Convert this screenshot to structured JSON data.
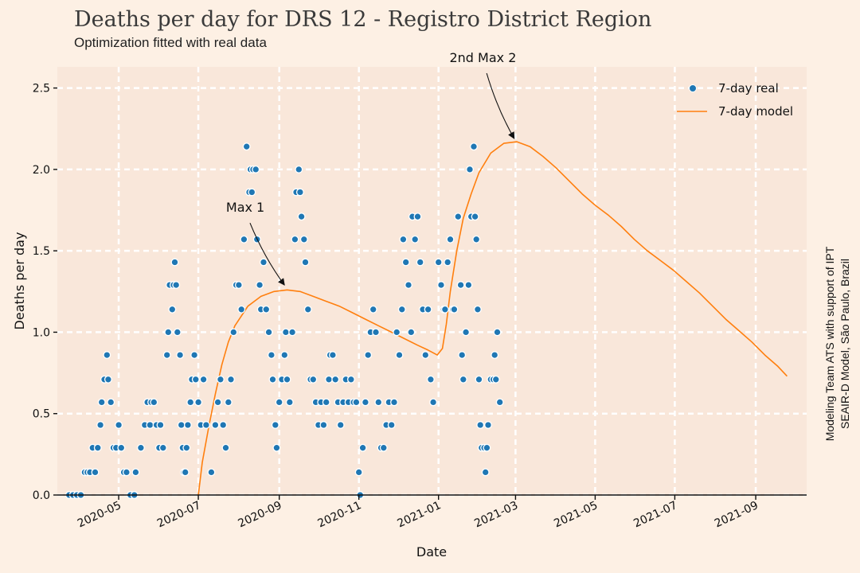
{
  "header": {
    "title": "Deaths per day for DRS 12 - Registro District Region",
    "subtitle": "Optimization fitted with real data"
  },
  "side_credit": {
    "line1": "Modeling Team ATS with support of IPT",
    "line2": "SEAIR-D Model, São Paulo, Brazil"
  },
  "colors": {
    "background": "#fdf0e4",
    "plot_background": "#f9e7da",
    "grid": "#ffffff",
    "real": "#1f77b4",
    "model": "#ff7f0e"
  },
  "chart_data": {
    "type": "scatter",
    "title": "Deaths per day for DRS 12 - Registro District Region",
    "xlabel": "Date",
    "ylabel": "Deaths per day",
    "xlim": [
      "2020-03-15",
      "2021-10-10"
    ],
    "ylim": [
      0,
      2.63
    ],
    "grid": true,
    "legend_position": "top-right",
    "x_ticks": [
      "2020-05",
      "2020-07",
      "2020-09",
      "2020-11",
      "2021-01",
      "2021-03",
      "2021-05",
      "2021-07",
      "2021-09"
    ],
    "y_ticks": [
      "0.0",
      "0.5",
      "1.0",
      "1.5",
      "2.0",
      "2.5"
    ],
    "series": [
      {
        "name": "7-day real",
        "kind": "scatter",
        "points": [
          [
            "2020-03-24",
            0
          ],
          [
            "2020-03-27",
            0
          ],
          [
            "2020-03-30",
            0
          ],
          [
            "2020-04-02",
            0
          ],
          [
            "2020-04-05",
            0.14
          ],
          [
            "2020-04-07",
            0.14
          ],
          [
            "2020-04-09",
            0.14
          ],
          [
            "2020-04-11",
            0.29
          ],
          [
            "2020-04-13",
            0.14
          ],
          [
            "2020-04-15",
            0.29
          ],
          [
            "2020-04-17",
            0.43
          ],
          [
            "2020-04-18",
            0.57
          ],
          [
            "2020-04-20",
            0.71
          ],
          [
            "2020-04-22",
            0.86
          ],
          [
            "2020-04-23",
            0.71
          ],
          [
            "2020-04-25",
            0.57
          ],
          [
            "2020-04-27",
            0.29
          ],
          [
            "2020-04-29",
            0.29
          ],
          [
            "2020-05-01",
            0.43
          ],
          [
            "2020-05-03",
            0.29
          ],
          [
            "2020-05-05",
            0.14
          ],
          [
            "2020-05-07",
            0.14
          ],
          [
            "2020-05-10",
            0
          ],
          [
            "2020-05-13",
            0
          ],
          [
            "2020-05-14",
            0.14
          ],
          [
            "2020-05-18",
            0.29
          ],
          [
            "2020-05-21",
            0.43
          ],
          [
            "2020-05-23",
            0.57
          ],
          [
            "2020-05-25",
            0.43
          ],
          [
            "2020-05-26",
            0.57
          ],
          [
            "2020-05-28",
            0.57
          ],
          [
            "2020-05-30",
            0.43
          ],
          [
            "2020-06-01",
            0.29
          ],
          [
            "2020-06-02",
            0.43
          ],
          [
            "2020-06-04",
            0.29
          ],
          [
            "2020-06-07",
            0.86
          ],
          [
            "2020-06-08",
            1.0
          ],
          [
            "2020-06-09",
            1.29
          ],
          [
            "2020-06-11",
            1.14
          ],
          [
            "2020-06-12",
            1.29
          ],
          [
            "2020-06-13",
            1.43
          ],
          [
            "2020-06-14",
            1.29
          ],
          [
            "2020-06-15",
            1.0
          ],
          [
            "2020-06-17",
            0.86
          ],
          [
            "2020-06-18",
            0.43
          ],
          [
            "2020-06-19",
            0.29
          ],
          [
            "2020-06-20",
            0.14
          ],
          [
            "2020-06-21",
            0.14
          ],
          [
            "2020-06-22",
            0.29
          ],
          [
            "2020-06-23",
            0.43
          ],
          [
            "2020-06-25",
            0.57
          ],
          [
            "2020-06-26",
            0.71
          ],
          [
            "2020-06-28",
            0.86
          ],
          [
            "2020-06-29",
            0.71
          ],
          [
            "2020-07-01",
            0.57
          ],
          [
            "2020-07-03",
            0.43
          ],
          [
            "2020-07-05",
            0.71
          ],
          [
            "2020-07-07",
            0.43
          ],
          [
            "2020-07-11",
            0.14
          ],
          [
            "2020-07-14",
            0.43
          ],
          [
            "2020-07-16",
            0.57
          ],
          [
            "2020-07-18",
            0.71
          ],
          [
            "2020-07-20",
            0.43
          ],
          [
            "2020-07-22",
            0.29
          ],
          [
            "2020-07-24",
            0.57
          ],
          [
            "2020-07-26",
            0.71
          ],
          [
            "2020-07-28",
            1.0
          ],
          [
            "2020-07-30",
            1.29
          ],
          [
            "2020-08-01",
            1.29
          ],
          [
            "2020-08-03",
            1.14
          ],
          [
            "2020-08-05",
            1.57
          ],
          [
            "2020-08-07",
            2.14
          ],
          [
            "2020-08-09",
            1.86
          ],
          [
            "2020-08-10",
            2.0
          ],
          [
            "2020-08-11",
            1.86
          ],
          [
            "2020-08-12",
            2.0
          ],
          [
            "2020-08-14",
            2.0
          ],
          [
            "2020-08-15",
            1.57
          ],
          [
            "2020-08-17",
            1.29
          ],
          [
            "2020-08-18",
            1.14
          ],
          [
            "2020-08-20",
            1.43
          ],
          [
            "2020-08-22",
            1.14
          ],
          [
            "2020-08-24",
            1.0
          ],
          [
            "2020-08-26",
            0.86
          ],
          [
            "2020-08-27",
            0.71
          ],
          [
            "2020-08-29",
            0.43
          ],
          [
            "2020-08-30",
            0.29
          ],
          [
            "2020-09-01",
            0.57
          ],
          [
            "2020-09-03",
            0.71
          ],
          [
            "2020-09-05",
            0.86
          ],
          [
            "2020-09-06",
            1.0
          ],
          [
            "2020-09-07",
            0.71
          ],
          [
            "2020-09-09",
            0.57
          ],
          [
            "2020-09-11",
            1.0
          ],
          [
            "2020-09-13",
            1.57
          ],
          [
            "2020-09-14",
            1.86
          ],
          [
            "2020-09-16",
            2.0
          ],
          [
            "2020-09-17",
            1.86
          ],
          [
            "2020-09-18",
            1.71
          ],
          [
            "2020-09-20",
            1.57
          ],
          [
            "2020-09-21",
            1.43
          ],
          [
            "2020-09-23",
            1.14
          ],
          [
            "2020-09-25",
            0.71
          ],
          [
            "2020-09-27",
            0.71
          ],
          [
            "2020-09-29",
            0.57
          ],
          [
            "2020-10-01",
            0.43
          ],
          [
            "2020-10-03",
            0.57
          ],
          [
            "2020-10-05",
            0.43
          ],
          [
            "2020-10-07",
            0.57
          ],
          [
            "2020-10-09",
            0.71
          ],
          [
            "2020-10-10",
            0.86
          ],
          [
            "2020-10-12",
            0.86
          ],
          [
            "2020-10-14",
            0.71
          ],
          [
            "2020-10-16",
            0.57
          ],
          [
            "2020-10-18",
            0.43
          ],
          [
            "2020-10-20",
            0.57
          ],
          [
            "2020-10-22",
            0.71
          ],
          [
            "2020-10-24",
            0.57
          ],
          [
            "2020-10-26",
            0.71
          ],
          [
            "2020-10-28",
            0.57
          ],
          [
            "2020-10-30",
            0.57
          ],
          [
            "2020-11-01",
            0.14
          ],
          [
            "2020-11-02",
            0
          ],
          [
            "2020-11-04",
            0.29
          ],
          [
            "2020-11-06",
            0.57
          ],
          [
            "2020-11-08",
            0.86
          ],
          [
            "2020-11-10",
            1.0
          ],
          [
            "2020-11-12",
            1.14
          ],
          [
            "2020-11-14",
            1.0
          ],
          [
            "2020-11-16",
            0.57
          ],
          [
            "2020-11-18",
            0.29
          ],
          [
            "2020-11-20",
            0.29
          ],
          [
            "2020-11-22",
            0.43
          ],
          [
            "2020-11-24",
            0.57
          ],
          [
            "2020-11-26",
            0.43
          ],
          [
            "2020-11-28",
            0.57
          ],
          [
            "2020-11-30",
            1.0
          ],
          [
            "2020-12-02",
            0.86
          ],
          [
            "2020-12-04",
            1.14
          ],
          [
            "2020-12-05",
            1.57
          ],
          [
            "2020-12-07",
            1.43
          ],
          [
            "2020-12-09",
            1.29
          ],
          [
            "2020-12-11",
            1.0
          ],
          [
            "2020-12-12",
            1.71
          ],
          [
            "2020-12-14",
            1.57
          ],
          [
            "2020-12-16",
            1.71
          ],
          [
            "2020-12-18",
            1.43
          ],
          [
            "2020-12-20",
            1.14
          ],
          [
            "2020-12-22",
            0.86
          ],
          [
            "2020-12-24",
            1.14
          ],
          [
            "2020-12-26",
            0.71
          ],
          [
            "2020-12-28",
            0.57
          ],
          [
            "2021-01-01",
            1.43
          ],
          [
            "2021-01-03",
            1.29
          ],
          [
            "2021-01-05",
            1.14
          ],
          [
            "2021-01-06",
            1.14
          ],
          [
            "2021-01-08",
            1.43
          ],
          [
            "2021-01-10",
            1.57
          ],
          [
            "2021-01-12",
            1.14
          ],
          [
            "2021-01-13",
            1.14
          ],
          [
            "2021-01-16",
            1.71
          ],
          [
            "2021-01-18",
            1.29
          ],
          [
            "2021-01-19",
            0.86
          ],
          [
            "2021-01-20",
            0.71
          ],
          [
            "2021-01-22",
            1.0
          ],
          [
            "2021-01-24",
            1.29
          ],
          [
            "2021-01-25",
            2.0
          ],
          [
            "2021-01-26",
            1.71
          ],
          [
            "2021-01-28",
            2.14
          ],
          [
            "2021-01-29",
            1.71
          ],
          [
            "2021-01-30",
            1.57
          ],
          [
            "2021-01-31",
            1.14
          ],
          [
            "2021-02-01",
            0.71
          ],
          [
            "2021-02-02",
            0.43
          ],
          [
            "2021-02-03",
            0.29
          ],
          [
            "2021-02-05",
            0.29
          ],
          [
            "2021-02-06",
            0.14
          ],
          [
            "2021-02-07",
            0.29
          ],
          [
            "2021-02-08",
            0.43
          ],
          [
            "2021-02-10",
            0.71
          ],
          [
            "2021-02-12",
            0.71
          ],
          [
            "2021-02-13",
            0.86
          ],
          [
            "2021-02-14",
            0.71
          ],
          [
            "2021-02-15",
            1.0
          ],
          [
            "2021-02-17",
            0.57
          ]
        ]
      },
      {
        "name": "7-day model",
        "kind": "line",
        "points": [
          [
            "2020-07-01",
            0
          ],
          [
            "2020-07-04",
            0.2
          ],
          [
            "2020-07-09",
            0.42
          ],
          [
            "2020-07-14",
            0.62
          ],
          [
            "2020-07-19",
            0.8
          ],
          [
            "2020-07-24",
            0.94
          ],
          [
            "2020-07-29",
            1.04
          ],
          [
            "2020-08-08",
            1.16
          ],
          [
            "2020-08-18",
            1.22
          ],
          [
            "2020-08-28",
            1.25
          ],
          [
            "2020-09-07",
            1.26
          ],
          [
            "2020-09-17",
            1.25
          ],
          [
            "2020-09-27",
            1.22
          ],
          [
            "2020-10-07",
            1.19
          ],
          [
            "2020-10-17",
            1.16
          ],
          [
            "2020-10-27",
            1.12
          ],
          [
            "2020-11-06",
            1.08
          ],
          [
            "2020-11-16",
            1.04
          ],
          [
            "2020-11-26",
            1.0
          ],
          [
            "2020-12-06",
            0.96
          ],
          [
            "2020-12-16",
            0.92
          ],
          [
            "2020-12-24",
            0.89
          ],
          [
            "2020-12-31",
            0.86
          ],
          [
            "2021-01-04",
            0.9
          ],
          [
            "2021-01-07",
            1.05
          ],
          [
            "2021-01-10",
            1.25
          ],
          [
            "2021-01-15",
            1.5
          ],
          [
            "2021-01-20",
            1.7
          ],
          [
            "2021-01-26",
            1.85
          ],
          [
            "2021-02-01",
            1.98
          ],
          [
            "2021-02-10",
            2.1
          ],
          [
            "2021-02-20",
            2.16
          ],
          [
            "2021-03-02",
            2.17
          ],
          [
            "2021-03-12",
            2.14
          ],
          [
            "2021-03-22",
            2.08
          ],
          [
            "2021-04-01",
            2.01
          ],
          [
            "2021-04-11",
            1.93
          ],
          [
            "2021-04-21",
            1.85
          ],
          [
            "2021-05-01",
            1.78
          ],
          [
            "2021-05-11",
            1.72
          ],
          [
            "2021-05-21",
            1.65
          ],
          [
            "2021-05-31",
            1.57
          ],
          [
            "2021-06-10",
            1.5
          ],
          [
            "2021-06-20",
            1.44
          ],
          [
            "2021-06-30",
            1.38
          ],
          [
            "2021-07-10",
            1.31
          ],
          [
            "2021-07-20",
            1.24
          ],
          [
            "2021-07-30",
            1.16
          ],
          [
            "2021-08-09",
            1.08
          ],
          [
            "2021-08-19",
            1.01
          ],
          [
            "2021-08-29",
            0.94
          ],
          [
            "2021-09-08",
            0.86
          ],
          [
            "2021-09-18",
            0.79
          ],
          [
            "2021-09-25",
            0.73
          ]
        ]
      }
    ],
    "annotations": [
      {
        "text": "Max 1",
        "target": [
          "2020-09-05",
          1.27
        ],
        "label_at": [
          "2020-08-06",
          1.71
        ]
      },
      {
        "text": "2nd Max 2",
        "target": [
          "2021-02-28",
          2.17
        ],
        "label_at": [
          "2021-02-04",
          2.63
        ]
      }
    ]
  }
}
